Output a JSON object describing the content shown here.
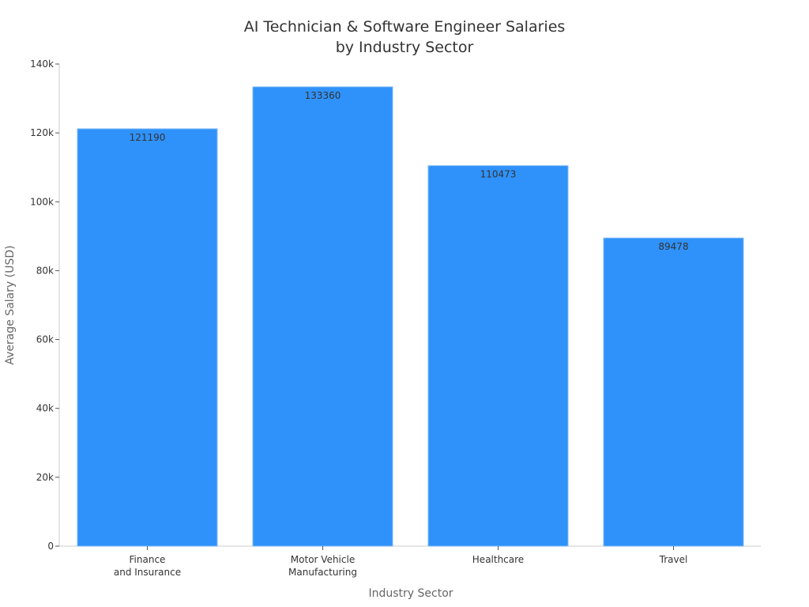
{
  "chart_data": {
    "type": "bar",
    "title": [
      "AI Technician & Software Engineer Salaries",
      "by Industry Sector"
    ],
    "xlabel": "Industry Sector",
    "ylabel": "Average Salary (USD)",
    "categories": [
      [
        "Finance",
        "and Insurance"
      ],
      [
        "Motor Vehicle",
        "Manufacturing"
      ],
      [
        "Healthcare"
      ],
      [
        "Travel"
      ]
    ],
    "values": [
      121190,
      133360,
      110473,
      89478
    ],
    "data_labels": [
      "121190",
      "133360",
      "110473",
      "89478"
    ],
    "ylim": [
      0,
      140000
    ],
    "yticks": [
      0,
      20000,
      40000,
      60000,
      80000,
      100000,
      120000,
      140000
    ],
    "ytick_labels": [
      "0",
      "20k",
      "40k",
      "60k",
      "80k",
      "100k",
      "120k",
      "140k"
    ],
    "grid": false,
    "bar_color": "#2f92fa",
    "bar_edge_color": "#7fbaf7"
  }
}
